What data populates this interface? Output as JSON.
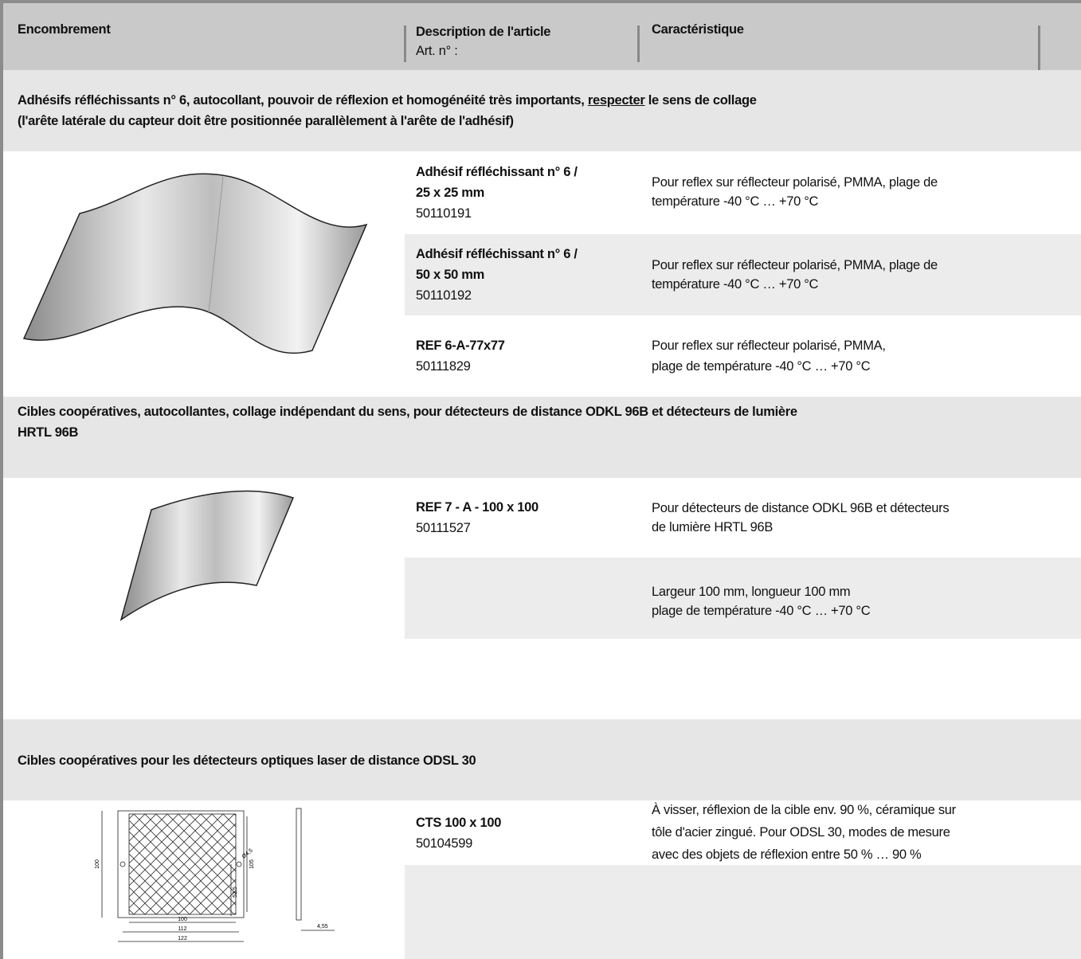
{
  "header": {
    "col1": "Encombrement",
    "col2": "Description de l'article",
    "col2_sub": "Art. n° :",
    "col3": "Caractéristique"
  },
  "sections": [
    {
      "title_lines": [
        [
          "Adhésifs réfléchissants n° 6, autocollant, pouvoir de réflexion et homogénéité très importants, ",
          "respecter",
          " le sens de collage"
        ],
        [
          "(l'arête latérale du capteur doit être positionnée parallèlement à l'arête de l'adhésif)"
        ]
      ],
      "items": [
        {
          "name_lines": [
            "Adhésif réfléchissant n° 6 /",
            "25 x 25 mm"
          ],
          "article": "50110191",
          "characteristic_lines": [
            "Pour reflex sur réflecteur polarisé, PMMA, plage de",
            "température -40 °C … +70 °C"
          ]
        },
        {
          "name_lines": [
            "Adhésif réfléchissant n° 6 /",
            "50 x 50 mm"
          ],
          "article": "50110192",
          "characteristic_lines": [
            "Pour reflex sur réflecteur polarisé, PMMA, plage de",
            "température -40 °C … +70 °C"
          ]
        },
        {
          "name_lines": [
            "REF 6-A-77x77"
          ],
          "article": "50111829",
          "characteristic_lines": [
            "Pour reflex sur réflecteur polarisé, PMMA,",
            "plage de température -40 °C … +70 °C"
          ]
        }
      ]
    },
    {
      "title_lines": [
        [
          "Cibles coopératives, autocollantes, collage indépendant du sens, pour détecteurs de distance ODKL 96B et détecteurs de lumière"
        ],
        [
          "HRTL 96B"
        ]
      ],
      "items": [
        {
          "name_lines": [
            "REF 7 - A - 100 x 100"
          ],
          "article": "50111527",
          "characteristic_lines": [
            "Pour détecteurs de distance ODKL 96B et détecteurs",
            "de lumière HRTL 96B"
          ]
        },
        {
          "characteristic_lines": [
            "Largeur 100 mm, longueur 100 mm",
            "plage de température -40 °C … +70 °C"
          ]
        }
      ]
    },
    {
      "title_lines": [
        [
          "Cibles coopératives pour les détecteurs optiques laser de distance ODSL 30"
        ]
      ],
      "drawing_labels": [
        "100",
        "112",
        "122",
        "100",
        "105",
        "52,5",
        "Ø4,5",
        "4,55"
      ],
      "items": [
        {
          "name_lines": [
            "CTS 100 x 100"
          ],
          "article": "50104599",
          "characteristic_lines": [
            "À visser, réflexion de la cible env. 90 %, céramique sur",
            "tôle d'acier zingué. Pour ODSL 30, modes de mesure",
            "avec des objets de réflexion entre 50 % … 90 %"
          ]
        }
      ]
    }
  ]
}
